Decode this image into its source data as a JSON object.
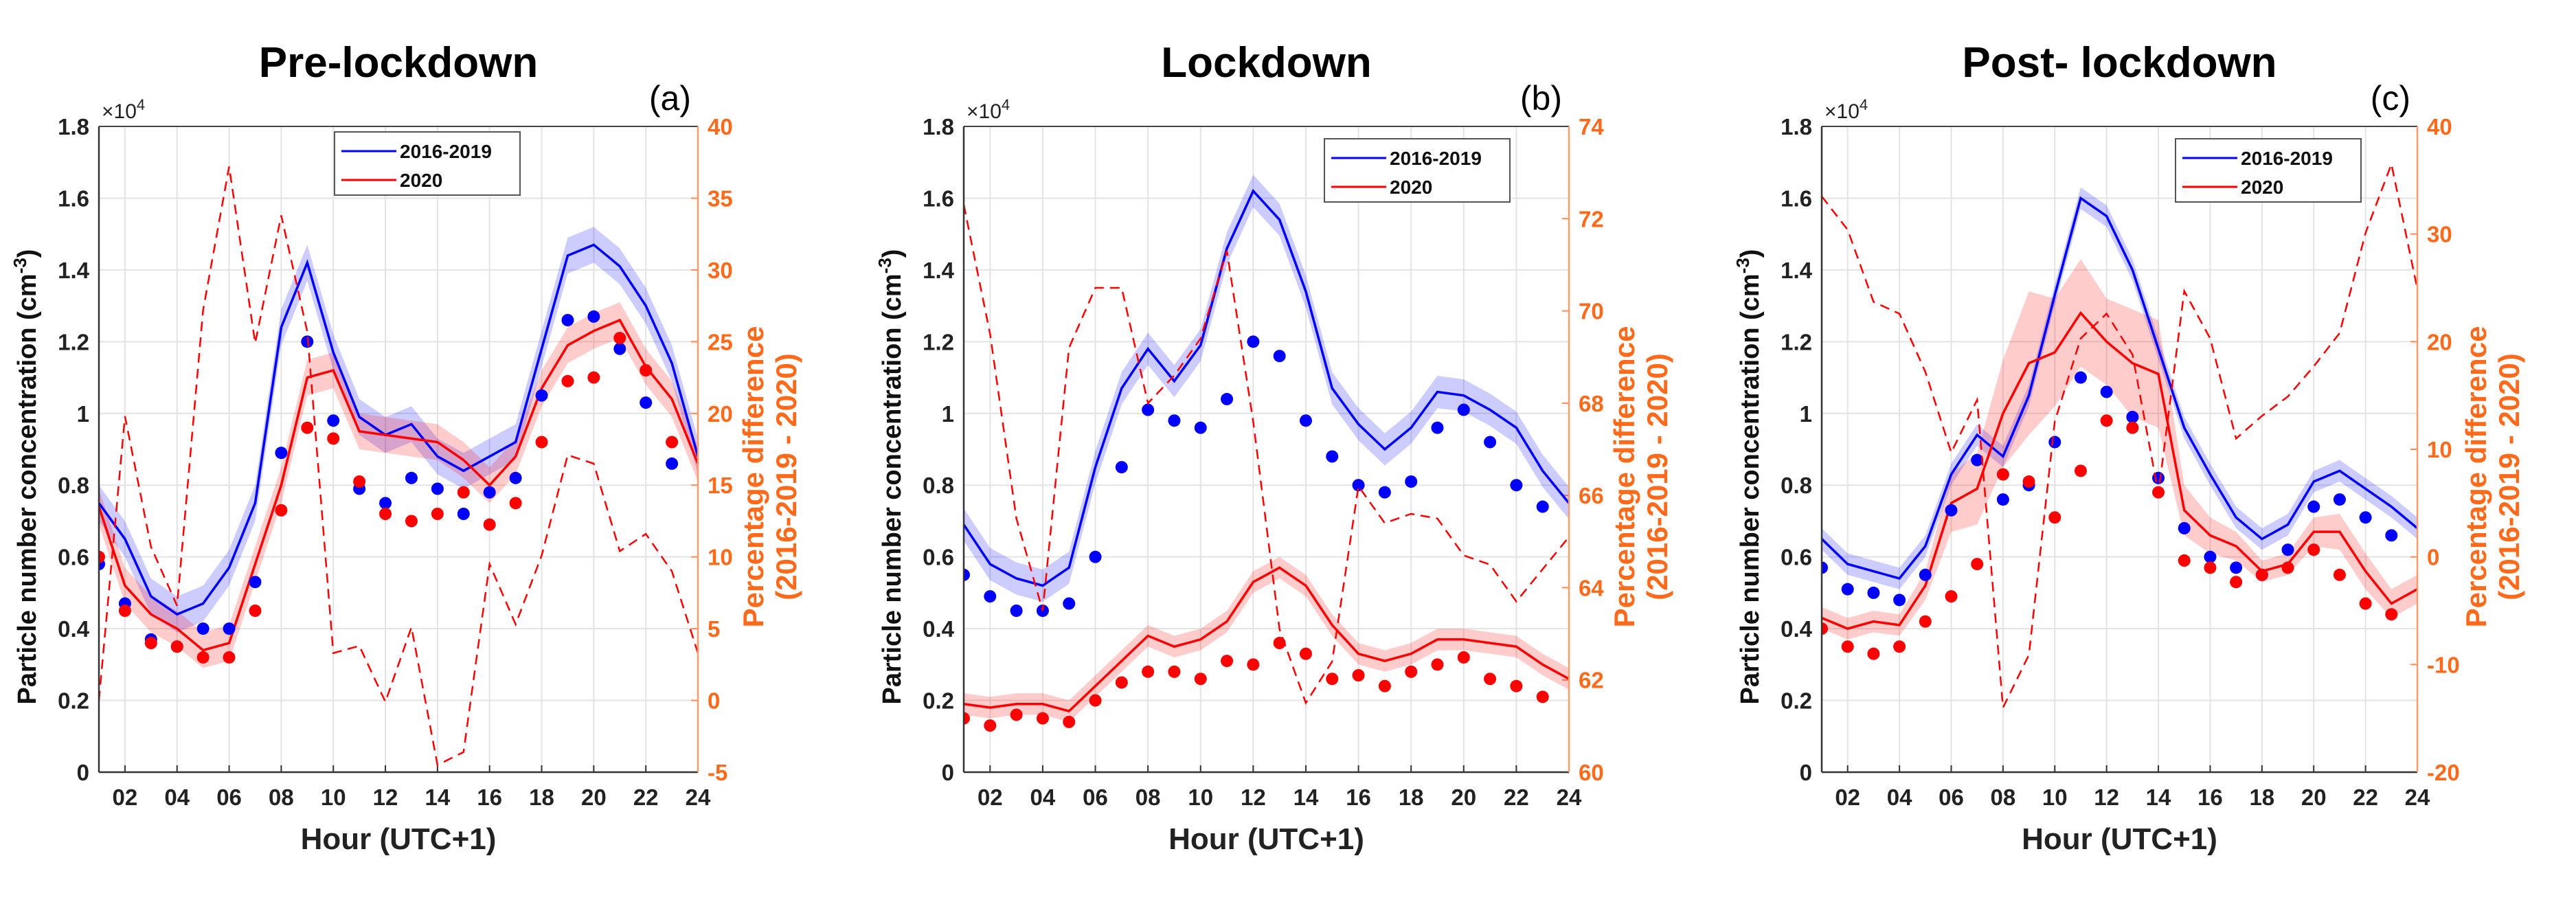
{
  "chart_data": [
    {
      "type": "line",
      "title": "Pre-lockdown",
      "panel_label": "(a)",
      "xlabel": "Hour (UTC+1)",
      "ylabel_prefix": "Particle number concentration (cm",
      "ylabel_exp": "-3",
      "ylabel_suffix": ")",
      "y_multiplier_base": "×10",
      "y_multiplier_exp": "4",
      "ylabel_right_line1": "Percentage difference",
      "ylabel_right_line2": "(2016-2019 - 2020)",
      "xlim": [
        1,
        24
      ],
      "ylim": [
        0,
        1.8
      ],
      "ylim_right": [
        -5,
        40
      ],
      "xticks": [
        "02",
        "04",
        "06",
        "08",
        "10",
        "12",
        "14",
        "16",
        "18",
        "20",
        "22",
        "24"
      ],
      "yticks": [
        "0",
        "0.2",
        "0.4",
        "0.6",
        "0.8",
        "1",
        "1.2",
        "1.4",
        "1.6",
        "1.8"
      ],
      "yticks_right": [
        "-5",
        "0",
        "5",
        "10",
        "15",
        "20",
        "25",
        "30",
        "35",
        "40"
      ],
      "grid": true,
      "legend": {
        "placement": "top-center",
        "entries": [
          "2016-2019",
          "2020"
        ]
      },
      "hours": [
        1,
        2,
        3,
        4,
        5,
        6,
        7,
        8,
        9,
        10,
        11,
        12,
        13,
        14,
        15,
        16,
        17,
        18,
        19,
        20,
        21,
        22,
        23,
        24
      ],
      "series": [
        {
          "name": "2016-2019",
          "color": "#0000ff",
          "style": "solid",
          "ci": 0.05,
          "values": [
            0.75,
            0.65,
            0.49,
            0.44,
            0.47,
            0.57,
            0.75,
            1.24,
            1.42,
            1.17,
            0.99,
            0.94,
            0.97,
            0.88,
            0.84,
            0.88,
            0.92,
            1.18,
            1.44,
            1.47,
            1.41,
            1.3,
            1.14,
            0.88
          ]
        },
        {
          "name": "2020",
          "color": "#ff0000",
          "style": "solid",
          "ci": 0.05,
          "values": [
            0.74,
            0.52,
            0.44,
            0.4,
            0.34,
            0.36,
            0.58,
            0.8,
            1.1,
            1.12,
            0.95,
            0.94,
            0.93,
            0.92,
            0.87,
            0.8,
            0.88,
            1.07,
            1.19,
            1.23,
            1.26,
            1.13,
            1.04,
            0.86
          ]
        },
        {
          "name": "2016-2019 points",
          "color": "#0000ff",
          "style": "dots",
          "values": [
            0.58,
            0.47,
            0.37,
            0.35,
            0.4,
            0.4,
            0.53,
            0.89,
            1.2,
            0.98,
            0.79,
            0.75,
            0.82,
            0.79,
            0.72,
            0.78,
            0.82,
            1.05,
            1.26,
            1.27,
            1.18,
            1.03,
            0.86
          ]
        },
        {
          "name": "2020 points",
          "color": "#ff0000",
          "style": "dots",
          "values": [
            0.6,
            0.45,
            0.36,
            0.35,
            0.32,
            0.32,
            0.45,
            0.73,
            0.96,
            0.93,
            0.81,
            0.72,
            0.7,
            0.72,
            0.78,
            0.69,
            0.75,
            0.92,
            1.09,
            1.1,
            1.21,
            1.12,
            0.92
          ]
        },
        {
          "name": "Percentage difference",
          "color": "#ff0000",
          "style": "dashed",
          "axis": "right",
          "values": [
            0.0,
            19.8,
            10.7,
            6.6,
            27.2,
            37.2,
            24.9,
            33.8,
            25.7,
            3.3,
            3.8,
            -0.1,
            5.1,
            -4.5,
            -3.6,
            9.5,
            5.3,
            10.1,
            17.1,
            16.5,
            10.4,
            11.6,
            9.0,
            3.3
          ]
        }
      ]
    },
    {
      "type": "line",
      "title": "Lockdown",
      "panel_label": "(b)",
      "xlabel": "Hour (UTC+1)",
      "ylabel_prefix": "Particle number concentration (cm",
      "ylabel_exp": "-3",
      "ylabel_suffix": ")",
      "y_multiplier_base": "×10",
      "y_multiplier_exp": "4",
      "ylabel_right_line1": "Percentage difference",
      "ylabel_right_line2": "(2016-2019 - 2020)",
      "xlim": [
        1,
        24
      ],
      "ylim": [
        0,
        1.8
      ],
      "ylim_right": [
        60,
        74
      ],
      "xticks": [
        "02",
        "04",
        "06",
        "08",
        "10",
        "12",
        "14",
        "16",
        "18",
        "20",
        "22",
        "24"
      ],
      "yticks": [
        "0",
        "0.2",
        "0.4",
        "0.6",
        "0.8",
        "1",
        "1.2",
        "1.4",
        "1.6",
        "1.8"
      ],
      "yticks_right": [
        "60",
        "62",
        "64",
        "66",
        "68",
        "70",
        "72",
        "74"
      ],
      "grid": true,
      "legend": {
        "placement": "top-right",
        "entries": [
          "2016-2019",
          "2020"
        ]
      },
      "hours": [
        1,
        2,
        3,
        4,
        5,
        6,
        7,
        8,
        9,
        10,
        11,
        12,
        13,
        14,
        15,
        16,
        17,
        18,
        19,
        20,
        21,
        22,
        23,
        24
      ],
      "series": [
        {
          "name": "2016-2019",
          "color": "#0000ff",
          "style": "solid",
          "ci": 0.045,
          "values": [
            0.69,
            0.58,
            0.54,
            0.52,
            0.57,
            0.85,
            1.07,
            1.18,
            1.09,
            1.19,
            1.46,
            1.62,
            1.54,
            1.34,
            1.07,
            0.97,
            0.9,
            0.96,
            1.06,
            1.05,
            1.01,
            0.96,
            0.84,
            0.75
          ]
        },
        {
          "name": "2020",
          "color": "#ff0000",
          "style": "solid",
          "ci": 0.03,
          "values": [
            0.19,
            0.18,
            0.19,
            0.19,
            0.17,
            0.24,
            0.31,
            0.38,
            0.35,
            0.37,
            0.42,
            0.53,
            0.57,
            0.52,
            0.41,
            0.33,
            0.31,
            0.33,
            0.37,
            0.37,
            0.36,
            0.35,
            0.3,
            0.26
          ]
        },
        {
          "name": "2016-2019 points",
          "color": "#0000ff",
          "style": "dots",
          "values": [
            0.55,
            0.49,
            0.45,
            0.45,
            0.47,
            0.6,
            0.85,
            1.01,
            0.98,
            0.96,
            1.04,
            1.2,
            1.16,
            0.98,
            0.88,
            0.8,
            0.78,
            0.81,
            0.96,
            1.01,
            0.92,
            0.8,
            0.74
          ]
        },
        {
          "name": "2020 points",
          "color": "#ff0000",
          "style": "dots",
          "values": [
            0.15,
            0.13,
            0.16,
            0.15,
            0.14,
            0.2,
            0.25,
            0.28,
            0.28,
            0.26,
            0.31,
            0.3,
            0.36,
            0.33,
            0.26,
            0.27,
            0.24,
            0.28,
            0.3,
            0.32,
            0.26,
            0.24,
            0.21
          ]
        },
        {
          "name": "Percentage difference",
          "color": "#ff0000",
          "style": "dashed",
          "axis": "right",
          "values": [
            72.3,
            69.5,
            65.5,
            63.5,
            69.2,
            70.5,
            70.5,
            68.0,
            68.6,
            69.4,
            71.3,
            67.6,
            63.1,
            61.5,
            62.4,
            66.2,
            65.4,
            65.6,
            65.5,
            64.7,
            64.5,
            63.7,
            64.4,
            65.1
          ]
        }
      ]
    },
    {
      "type": "line",
      "title": "Post- lockdown",
      "panel_label": "(c)",
      "xlabel": "Hour (UTC+1)",
      "ylabel_prefix": "Particle number concentration (cm",
      "ylabel_exp": "-3",
      "ylabel_suffix": ")",
      "y_multiplier_base": "×10",
      "y_multiplier_exp": "4",
      "ylabel_right_line1": "Percentage difference",
      "ylabel_right_line2": "(2016-2019 - 2020)",
      "xlim": [
        1,
        24
      ],
      "ylim": [
        0,
        1.8
      ],
      "ylim_right": [
        -20,
        40
      ],
      "xticks": [
        "02",
        "04",
        "06",
        "08",
        "10",
        "12",
        "14",
        "16",
        "18",
        "20",
        "22",
        "24"
      ],
      "yticks": [
        "0",
        "0.2",
        "0.4",
        "0.6",
        "0.8",
        "1",
        "1.2",
        "1.4",
        "1.6",
        "1.8"
      ],
      "yticks_right": [
        "-20",
        "-10",
        "0",
        "10",
        "20",
        "30",
        "40"
      ],
      "grid": true,
      "legend": {
        "placement": "top-right",
        "entries": [
          "2016-2019",
          "2020"
        ]
      },
      "hours": [
        1,
        2,
        3,
        4,
        5,
        6,
        7,
        8,
        9,
        10,
        11,
        12,
        13,
        14,
        15,
        16,
        17,
        18,
        19,
        20,
        21,
        22,
        23,
        24
      ],
      "series": [
        {
          "name": "2016-2019",
          "color": "#0000ff",
          "style": "solid",
          "ci": 0.03,
          "values": [
            0.65,
            0.58,
            0.56,
            0.54,
            0.63,
            0.83,
            0.94,
            0.88,
            1.05,
            1.33,
            1.6,
            1.55,
            1.4,
            1.18,
            0.96,
            0.83,
            0.71,
            0.65,
            0.69,
            0.81,
            0.84,
            0.79,
            0.74,
            0.68
          ]
        },
        {
          "name": "2020",
          "color": "#ff0000",
          "style": "solid",
          "ci": [
            0.03,
            0.03,
            0.03,
            0.03,
            0.04,
            0.08,
            0.1,
            0.15,
            0.2,
            0.15,
            0.15,
            0.12,
            0.15,
            0.15,
            0.07,
            0.05,
            0.04,
            0.03,
            0.03,
            0.04,
            0.05,
            0.05,
            0.04,
            0.04
          ],
          "values": [
            0.43,
            0.4,
            0.42,
            0.41,
            0.52,
            0.75,
            0.79,
            1.0,
            1.14,
            1.17,
            1.28,
            1.2,
            1.14,
            1.11,
            0.73,
            0.66,
            0.63,
            0.56,
            0.58,
            0.67,
            0.67,
            0.56,
            0.47,
            0.51
          ]
        },
        {
          "name": "2016-2019 points",
          "color": "#0000ff",
          "style": "dots",
          "values": [
            0.57,
            0.51,
            0.5,
            0.48,
            0.55,
            0.73,
            0.87,
            0.76,
            0.8,
            0.92,
            1.1,
            1.06,
            0.99,
            0.82,
            0.68,
            0.6,
            0.57,
            0.55,
            0.62,
            0.74,
            0.76,
            0.71,
            0.66
          ]
        },
        {
          "name": "2020 points",
          "color": "#ff0000",
          "style": "dots",
          "values": [
            0.4,
            0.35,
            0.33,
            0.35,
            0.42,
            0.49,
            0.58,
            0.83,
            0.81,
            0.71,
            0.84,
            0.98,
            0.96,
            0.78,
            0.59,
            0.57,
            0.53,
            0.55,
            0.57,
            0.62,
            0.55,
            0.47,
            0.44
          ]
        },
        {
          "name": "Percentage difference",
          "color": "#ff0000",
          "style": "dashed",
          "axis": "right",
          "values": [
            33.5,
            30.4,
            23.7,
            22.6,
            17.2,
            9.7,
            14.6,
            -14.0,
            -9.1,
            12.6,
            20.3,
            22.6,
            18.8,
            5.9,
            24.7,
            20.3,
            11.0,
            13.1,
            14.9,
            17.7,
            20.8,
            30.1,
            36.5,
            24.9
          ]
        }
      ]
    }
  ]
}
